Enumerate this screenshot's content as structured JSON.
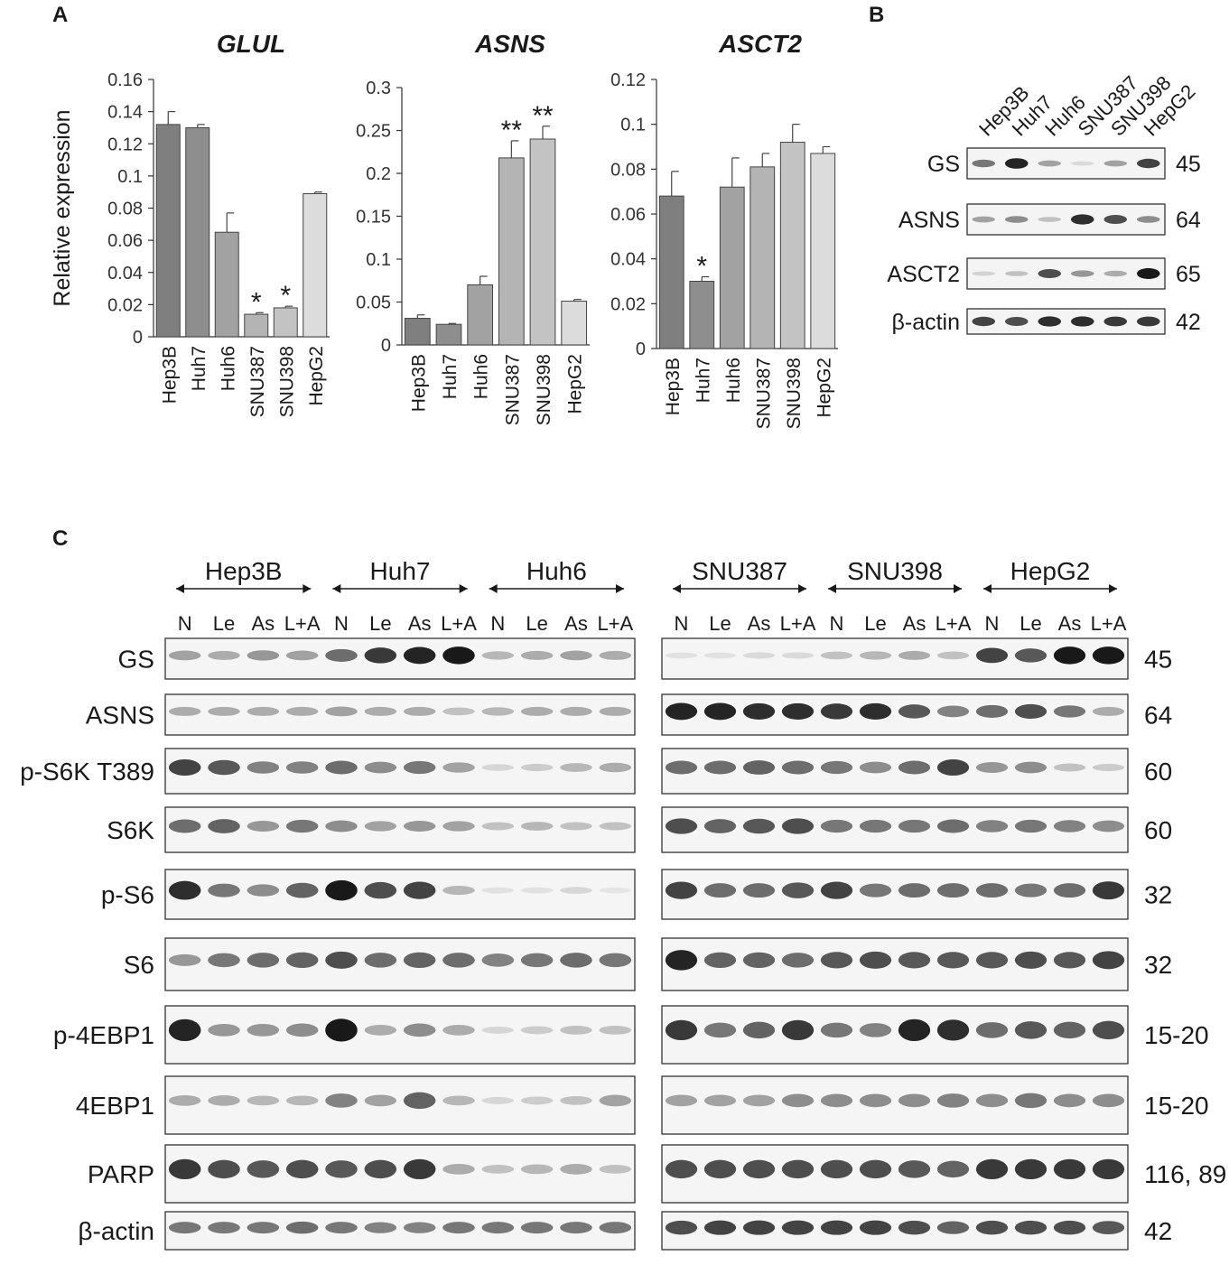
{
  "panels": {
    "a": "A",
    "b": "B",
    "c": "C"
  },
  "colors": {
    "bar_fills": [
      "#7f7f7f",
      "#8e8e8e",
      "#a2a2a2",
      "#b4b4b4",
      "#c3c3c3",
      "#dcdcdc"
    ],
    "axis": "#333333",
    "band": "#1a1a1a"
  },
  "chart_data": [
    {
      "type": "bar",
      "title": "GLUL",
      "ylabel": "Relative expression",
      "categories": [
        "Hep3B",
        "Huh7",
        "Huh6",
        "SNU387",
        "SNU398",
        "HepG2"
      ],
      "values": [
        0.132,
        0.13,
        0.065,
        0.014,
        0.018,
        0.089
      ],
      "errors": [
        0.008,
        0.002,
        0.012,
        0.001,
        0.001,
        0.001
      ],
      "annotations": [
        "",
        "",
        "",
        "*",
        "*",
        ""
      ],
      "ylim": [
        0,
        0.16
      ],
      "yticks": [
        "0",
        "0.02",
        "0.04",
        "0.06",
        "0.08",
        "0.1",
        "0.12",
        "0.14",
        "0.16"
      ],
      "ytick_values": [
        0,
        0.02,
        0.04,
        0.06,
        0.08,
        0.1,
        0.12,
        0.14,
        0.16
      ],
      "grid": false
    },
    {
      "type": "bar",
      "title": "ASNS",
      "ylabel": "",
      "categories": [
        "Hep3B",
        "Huh7",
        "Huh6",
        "SNU387",
        "SNU398",
        "HepG2"
      ],
      "values": [
        0.031,
        0.024,
        0.07,
        0.218,
        0.24,
        0.051
      ],
      "errors": [
        0.004,
        0.001,
        0.01,
        0.02,
        0.015,
        0.002
      ],
      "annotations": [
        "",
        "",
        "",
        "**",
        "**",
        ""
      ],
      "ylim": [
        0,
        0.3
      ],
      "yticks": [
        "0",
        "0.05",
        "0.1",
        "0.15",
        "0.2",
        "0.25",
        "0.3"
      ],
      "ytick_values": [
        0,
        0.05,
        0.1,
        0.15,
        0.2,
        0.25,
        0.3
      ],
      "grid": false
    },
    {
      "type": "bar",
      "title": "ASCT2",
      "ylabel": "",
      "categories": [
        "Hep3B",
        "Huh7",
        "Huh6",
        "SNU387",
        "SNU398",
        "HepG2"
      ],
      "values": [
        0.068,
        0.03,
        0.072,
        0.081,
        0.092,
        0.087
      ],
      "errors": [
        0.011,
        0.002,
        0.013,
        0.006,
        0.008,
        0.003
      ],
      "annotations": [
        "",
        "*",
        "",
        "",
        "",
        ""
      ],
      "ylim": [
        0,
        0.12
      ],
      "yticks": [
        "0",
        "0.02",
        "0.04",
        "0.06",
        "0.08",
        "0.1",
        "0.12"
      ],
      "ytick_values": [
        0,
        0.02,
        0.04,
        0.06,
        0.08,
        0.1,
        0.12
      ],
      "grid": false
    }
  ],
  "blot_b": {
    "lanes": [
      "Hep3B",
      "Huh7",
      "Huh6",
      "SNU387",
      "SNU398",
      "HepG2"
    ],
    "rows": [
      {
        "protein": "GS",
        "kda": "45",
        "intensity": [
          0.55,
          0.95,
          0.35,
          0.08,
          0.35,
          0.8
        ]
      },
      {
        "protein": "ASNS",
        "kda": "64",
        "intensity": [
          0.35,
          0.45,
          0.2,
          0.9,
          0.75,
          0.45
        ]
      },
      {
        "protein": "ASCT2",
        "kda": "65",
        "intensity": [
          0.12,
          0.2,
          0.75,
          0.4,
          0.3,
          1.0
        ]
      },
      {
        "protein": "β-actin",
        "kda": "42",
        "intensity": [
          0.8,
          0.75,
          0.9,
          0.9,
          0.85,
          0.85
        ]
      }
    ]
  },
  "blot_c": {
    "groups_left": [
      "Hep3B",
      "Huh7",
      "Huh6"
    ],
    "groups_right": [
      "SNU387",
      "SNU398",
      "HepG2"
    ],
    "lane_labels": [
      "N",
      "Le",
      "As",
      "L+A"
    ],
    "rows": [
      {
        "protein": "GS",
        "kda": "45",
        "left": [
          0.35,
          0.3,
          0.4,
          0.35,
          0.6,
          0.85,
          0.95,
          1.0,
          0.25,
          0.3,
          0.35,
          0.3
        ],
        "right": [
          0.05,
          0.05,
          0.08,
          0.08,
          0.2,
          0.25,
          0.3,
          0.2,
          0.8,
          0.7,
          1.0,
          1.0
        ]
      },
      {
        "protein": "ASNS",
        "kda": "64",
        "left": [
          0.3,
          0.3,
          0.3,
          0.3,
          0.35,
          0.3,
          0.3,
          0.2,
          0.25,
          0.3,
          0.3,
          0.3
        ],
        "right": [
          0.95,
          0.95,
          0.9,
          0.9,
          0.85,
          0.9,
          0.7,
          0.5,
          0.6,
          0.75,
          0.55,
          0.3
        ]
      },
      {
        "protein": "p-S6K T389",
        "kda": "60",
        "left": [
          0.8,
          0.7,
          0.5,
          0.5,
          0.6,
          0.45,
          0.55,
          0.35,
          0.1,
          0.15,
          0.25,
          0.3
        ],
        "right": [
          0.6,
          0.6,
          0.65,
          0.6,
          0.55,
          0.45,
          0.6,
          0.8,
          0.4,
          0.45,
          0.2,
          0.15
        ]
      },
      {
        "protein": "S6K",
        "kda": "60",
        "left": [
          0.6,
          0.65,
          0.4,
          0.55,
          0.45,
          0.35,
          0.4,
          0.35,
          0.2,
          0.25,
          0.2,
          0.2
        ],
        "right": [
          0.75,
          0.65,
          0.7,
          0.75,
          0.55,
          0.55,
          0.55,
          0.6,
          0.5,
          0.55,
          0.5,
          0.45
        ]
      },
      {
        "protein": "p-S6",
        "kda": "32",
        "left": [
          0.9,
          0.55,
          0.45,
          0.65,
          1.0,
          0.75,
          0.8,
          0.25,
          0.05,
          0.05,
          0.1,
          0.03
        ],
        "right": [
          0.8,
          0.6,
          0.6,
          0.7,
          0.8,
          0.55,
          0.6,
          0.6,
          0.6,
          0.55,
          0.6,
          0.85
        ]
      },
      {
        "protein": "S6",
        "kda": "32",
        "left": [
          0.4,
          0.55,
          0.6,
          0.65,
          0.75,
          0.6,
          0.65,
          0.6,
          0.5,
          0.55,
          0.6,
          0.55
        ],
        "right": [
          0.95,
          0.65,
          0.65,
          0.6,
          0.7,
          0.75,
          0.7,
          0.7,
          0.7,
          0.75,
          0.7,
          0.8
        ]
      },
      {
        "protein": "p-4EBP1",
        "kda": "15-20",
        "left": [
          0.95,
          0.4,
          0.4,
          0.45,
          1.0,
          0.3,
          0.45,
          0.3,
          0.1,
          0.15,
          0.2,
          0.2
        ],
        "right": [
          0.85,
          0.55,
          0.65,
          0.85,
          0.55,
          0.5,
          0.95,
          0.9,
          0.6,
          0.7,
          0.65,
          0.75
        ]
      },
      {
        "protein": "4EBP1",
        "kda": "15-20",
        "left": [
          0.3,
          0.3,
          0.25,
          0.25,
          0.5,
          0.35,
          0.65,
          0.25,
          0.1,
          0.15,
          0.2,
          0.35
        ],
        "right": [
          0.35,
          0.35,
          0.35,
          0.45,
          0.45,
          0.45,
          0.45,
          0.5,
          0.45,
          0.55,
          0.45,
          0.45
        ]
      },
      {
        "protein": "PARP",
        "kda": "116, 89",
        "left": [
          0.85,
          0.75,
          0.7,
          0.75,
          0.7,
          0.75,
          0.85,
          0.3,
          0.2,
          0.25,
          0.3,
          0.2
        ],
        "right": [
          0.75,
          0.75,
          0.75,
          0.75,
          0.75,
          0.75,
          0.7,
          0.65,
          0.85,
          0.85,
          0.85,
          0.85
        ]
      },
      {
        "protein": "β-actin",
        "kda": "42",
        "left": [
          0.55,
          0.55,
          0.55,
          0.6,
          0.55,
          0.5,
          0.5,
          0.55,
          0.55,
          0.55,
          0.55,
          0.55
        ],
        "right": [
          0.75,
          0.8,
          0.8,
          0.8,
          0.8,
          0.8,
          0.75,
          0.65,
          0.75,
          0.75,
          0.75,
          0.7
        ]
      }
    ]
  }
}
